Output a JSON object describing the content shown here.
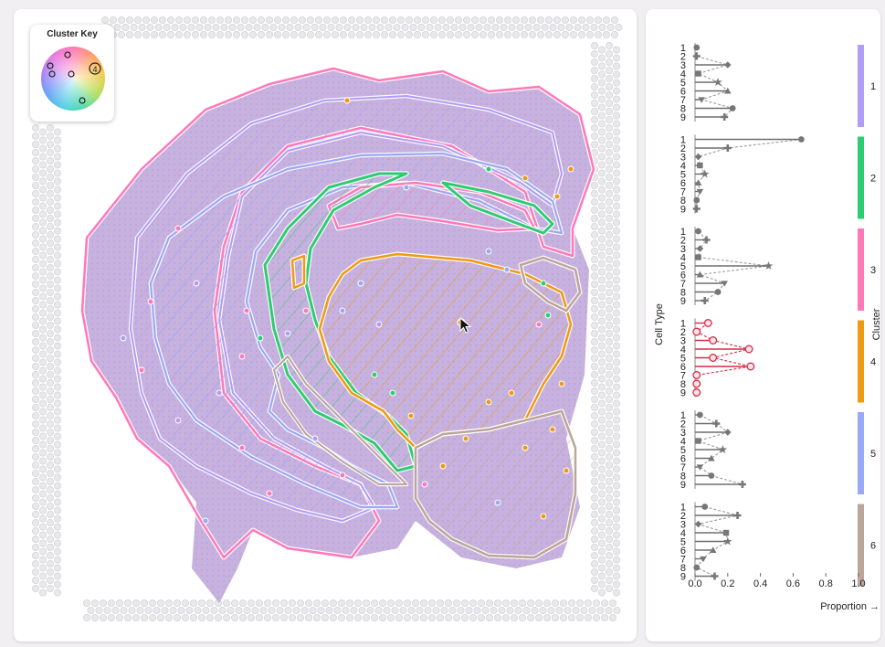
{
  "cluster_key": {
    "title": "Cluster Key",
    "selected_marker": "4"
  },
  "colors": {
    "cluster_1": "#b19cf7",
    "cluster_2": "#2ecc71",
    "cluster_3": "#ff79b8",
    "cluster_4": "#ee9a14",
    "cluster_5": "#9aa8f8",
    "cluster_6": "#bca699",
    "highlight": "#d62c46",
    "tissue": "#c7b1de"
  },
  "cursor_icon": "arrow-cursor-icon",
  "chart_data": {
    "type": "scatter",
    "xlabel": "Proportion →",
    "ylabel": "Cell Type",
    "right_label": "Cluster",
    "xlim": [
      0.0,
      1.0
    ],
    "x_ticks": [
      "0.0",
      "0.2",
      "0.4",
      "0.6",
      "0.8",
      "1.0"
    ],
    "cell_types": [
      "1",
      "2",
      "3",
      "4",
      "5",
      "6",
      "7",
      "8",
      "9"
    ],
    "markers": [
      "circle",
      "plus",
      "diamond",
      "square",
      "star",
      "triangle",
      "triangle-down",
      "circle",
      "plus"
    ],
    "clusters": [
      {
        "name": "1",
        "color": "#b19cf7",
        "highlighted": false,
        "values": [
          0.01,
          0.01,
          0.2,
          0.02,
          0.14,
          0.2,
          0.04,
          0.23,
          0.18
        ]
      },
      {
        "name": "2",
        "color": "#2ecc71",
        "highlighted": false,
        "values": [
          0.65,
          0.2,
          0.02,
          0.03,
          0.06,
          0.02,
          0.03,
          0.01,
          0.01
        ]
      },
      {
        "name": "3",
        "color": "#ff79b8",
        "highlighted": false,
        "values": [
          0.02,
          0.07,
          0.03,
          0.02,
          0.45,
          0.03,
          0.18,
          0.14,
          0.06
        ]
      },
      {
        "name": "4",
        "color": "#ee9a14",
        "highlighted": true,
        "values": [
          0.08,
          0.01,
          0.11,
          0.33,
          0.11,
          0.34,
          0.01,
          0.01,
          0.01
        ]
      },
      {
        "name": "5",
        "color": "#9aa8f8",
        "highlighted": false,
        "values": [
          0.03,
          0.13,
          0.2,
          0.02,
          0.17,
          0.1,
          0.03,
          0.1,
          0.29
        ]
      },
      {
        "name": "6",
        "color": "#bca699",
        "highlighted": false,
        "values": [
          0.06,
          0.26,
          0.02,
          0.19,
          0.2,
          0.11,
          0.05,
          0.01,
          0.12
        ]
      }
    ]
  }
}
